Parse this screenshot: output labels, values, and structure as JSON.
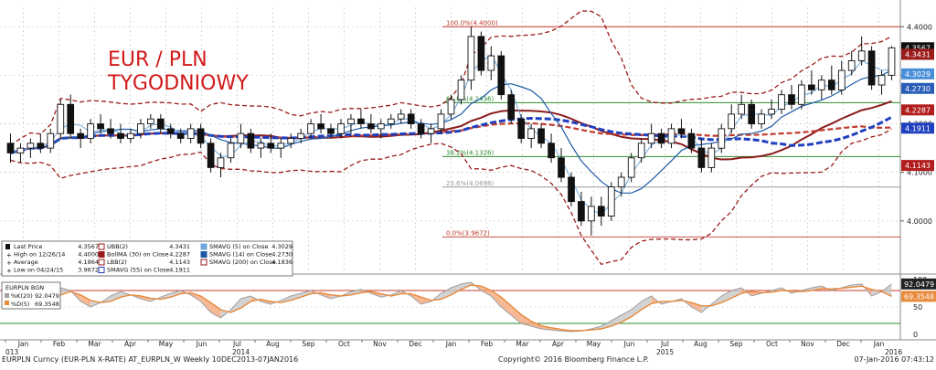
{
  "chart_data": {
    "type": "candlestick",
    "title": "EUR / PLN",
    "subtitle": "TYGODNIOWY",
    "y_range": [
      3.9,
      4.44
    ],
    "axis_ticks": [
      "4.4000",
      "4.3000",
      "4.2000",
      "4.1000",
      "4.0000"
    ],
    "axis_tick_values": [
      4.4,
      4.3,
      4.2,
      4.1,
      4.0
    ],
    "month_labels": [
      "Jan",
      "Feb",
      "Mar",
      "Apr",
      "May",
      "Jun",
      "Jul",
      "Aug",
      "Sep",
      "Oct",
      "Nov",
      "Dec",
      "Jan",
      "Feb",
      "Mar",
      "Apr",
      "May",
      "Jun",
      "Jul",
      "Aug",
      "Sep",
      "Oct",
      "Nov",
      "Dec",
      "Jan"
    ],
    "year_labels": [
      "013",
      "2014",
      "2015",
      "2016"
    ],
    "price_badges": [
      {
        "label": "4.3567",
        "value": 4.3567,
        "color": "#111111"
      },
      {
        "label": "4.3431",
        "value": 4.3431,
        "color": "#9b1b1b"
      },
      {
        "label": "4.3029",
        "value": 4.3029,
        "color": "#4a90d9"
      },
      {
        "label": "4.2730",
        "value": 4.273,
        "color": "#2a5db8"
      },
      {
        "label": "4.2287",
        "value": 4.2287,
        "color": "#b21d1d"
      },
      {
        "label": "4.1911",
        "value": 4.1911,
        "color": "#1f3fbf"
      },
      {
        "label": "4.1143",
        "value": 4.1143,
        "color": "#b21d1d"
      }
    ],
    "fib_levels": [
      {
        "label": "100.0%(4.4000)",
        "value": 4.4,
        "color": "#c0392b"
      },
      {
        "label": "61.8%(4.2436)",
        "value": 4.2436,
        "color": "#2e8b2e"
      },
      {
        "label": "38.2%(4.1326)",
        "value": 4.1326,
        "color": "#2e8b2e"
      },
      {
        "label": "23.6%(4.0698)",
        "value": 4.0698,
        "color": "#999999"
      },
      {
        "label": "0.0%(3.9672)",
        "value": 3.9672,
        "color": "#c0392b"
      }
    ],
    "candles": [
      [
        4.16,
        4.18,
        4.12,
        4.14
      ],
      [
        4.14,
        4.16,
        4.12,
        4.15
      ],
      [
        4.15,
        4.17,
        4.13,
        4.16
      ],
      [
        4.16,
        4.18,
        4.14,
        4.15
      ],
      [
        4.15,
        4.19,
        4.14,
        4.18
      ],
      [
        4.18,
        4.25,
        4.17,
        4.24
      ],
      [
        4.24,
        4.26,
        4.17,
        4.18
      ],
      [
        4.18,
        4.19,
        4.15,
        4.17
      ],
      [
        4.17,
        4.21,
        4.16,
        4.2
      ],
      [
        4.2,
        4.22,
        4.18,
        4.19
      ],
      [
        4.19,
        4.21,
        4.17,
        4.18
      ],
      [
        4.18,
        4.2,
        4.16,
        4.17
      ],
      [
        4.17,
        4.19,
        4.16,
        4.18
      ],
      [
        4.18,
        4.21,
        4.17,
        4.2
      ],
      [
        4.2,
        4.22,
        4.19,
        4.21
      ],
      [
        4.21,
        4.22,
        4.18,
        4.19
      ],
      [
        4.19,
        4.2,
        4.17,
        4.18
      ],
      [
        4.18,
        4.19,
        4.16,
        4.17
      ],
      [
        4.17,
        4.2,
        4.16,
        4.19
      ],
      [
        4.19,
        4.2,
        4.15,
        4.16
      ],
      [
        4.16,
        4.17,
        4.1,
        4.11
      ],
      [
        4.11,
        4.14,
        4.09,
        4.13
      ],
      [
        4.13,
        4.17,
        4.12,
        4.16
      ],
      [
        4.16,
        4.2,
        4.15,
        4.18
      ],
      [
        4.18,
        4.19,
        4.14,
        4.15
      ],
      [
        4.15,
        4.17,
        4.13,
        4.16
      ],
      [
        4.16,
        4.18,
        4.14,
        4.15
      ],
      [
        4.15,
        4.17,
        4.13,
        4.16
      ],
      [
        4.16,
        4.18,
        4.15,
        4.17
      ],
      [
        4.17,
        4.19,
        4.16,
        4.18
      ],
      [
        4.18,
        4.21,
        4.17,
        4.2
      ],
      [
        4.2,
        4.22,
        4.18,
        4.19
      ],
      [
        4.19,
        4.2,
        4.17,
        4.18
      ],
      [
        4.18,
        4.21,
        4.17,
        4.2
      ],
      [
        4.2,
        4.22,
        4.18,
        4.21
      ],
      [
        4.21,
        4.23,
        4.19,
        4.2
      ],
      [
        4.2,
        4.22,
        4.18,
        4.19
      ],
      [
        4.19,
        4.21,
        4.17,
        4.2
      ],
      [
        4.2,
        4.22,
        4.19,
        4.21
      ],
      [
        4.21,
        4.23,
        4.2,
        4.22
      ],
      [
        4.22,
        4.23,
        4.19,
        4.2
      ],
      [
        4.2,
        4.21,
        4.17,
        4.18
      ],
      [
        4.18,
        4.2,
        4.16,
        4.19
      ],
      [
        4.19,
        4.23,
        4.18,
        4.22
      ],
      [
        4.22,
        4.26,
        4.21,
        4.25
      ],
      [
        4.25,
        4.3,
        4.24,
        4.29
      ],
      [
        4.29,
        4.4,
        4.27,
        4.38
      ],
      [
        4.38,
        4.39,
        4.3,
        4.31
      ],
      [
        4.31,
        4.36,
        4.29,
        4.34
      ],
      [
        4.34,
        4.35,
        4.25,
        4.26
      ],
      [
        4.26,
        4.27,
        4.2,
        4.21
      ],
      [
        4.21,
        4.22,
        4.16,
        4.17
      ],
      [
        4.17,
        4.2,
        4.15,
        4.19
      ],
      [
        4.19,
        4.2,
        4.15,
        4.16
      ],
      [
        4.16,
        4.18,
        4.12,
        4.13
      ],
      [
        4.13,
        4.15,
        4.08,
        4.09
      ],
      [
        4.09,
        4.1,
        4.03,
        4.04
      ],
      [
        4.04,
        4.06,
        3.99,
        4.0
      ],
      [
        4.0,
        4.05,
        3.97,
        4.03
      ],
      [
        4.03,
        4.05,
        3.99,
        4.01
      ],
      [
        4.01,
        4.08,
        4.0,
        4.07
      ],
      [
        4.07,
        4.1,
        4.05,
        4.09
      ],
      [
        4.09,
        4.14,
        4.08,
        4.13
      ],
      [
        4.13,
        4.17,
        4.12,
        4.16
      ],
      [
        4.16,
        4.2,
        4.15,
        4.18
      ],
      [
        4.18,
        4.19,
        4.15,
        4.16
      ],
      [
        4.16,
        4.2,
        4.15,
        4.19
      ],
      [
        4.19,
        4.21,
        4.17,
        4.18
      ],
      [
        4.18,
        4.19,
        4.14,
        4.15
      ],
      [
        4.15,
        4.17,
        4.1,
        4.11
      ],
      [
        4.11,
        4.16,
        4.1,
        4.15
      ],
      [
        4.15,
        4.2,
        4.14,
        4.19
      ],
      [
        4.19,
        4.24,
        4.18,
        4.22
      ],
      [
        4.22,
        4.26,
        4.21,
        4.24
      ],
      [
        4.24,
        4.25,
        4.19,
        4.2
      ],
      [
        4.2,
        4.23,
        4.19,
        4.22
      ],
      [
        4.22,
        4.25,
        4.21,
        4.23
      ],
      [
        4.23,
        4.27,
        4.22,
        4.26
      ],
      [
        4.26,
        4.28,
        4.23,
        4.24
      ],
      [
        4.24,
        4.29,
        4.23,
        4.28
      ],
      [
        4.28,
        4.31,
        4.26,
        4.27
      ],
      [
        4.27,
        4.3,
        4.25,
        4.29
      ],
      [
        4.29,
        4.32,
        4.26,
        4.27
      ],
      [
        4.27,
        4.33,
        4.26,
        4.31
      ],
      [
        4.31,
        4.35,
        4.3,
        4.33
      ],
      [
        4.33,
        4.38,
        4.32,
        4.35
      ],
      [
        4.35,
        4.36,
        4.27,
        4.28
      ],
      [
        4.28,
        4.31,
        4.26,
        4.3
      ],
      [
        4.3,
        4.36,
        4.29,
        4.3567
      ]
    ],
    "legend": [
      {
        "label": "Last Price",
        "value": "4.3567",
        "mark": "candle"
      },
      {
        "label": "High on 12/26/14",
        "value": "4.4000",
        "mark": "plus"
      },
      {
        "label": "Average",
        "value": "4.1864",
        "mark": "plus"
      },
      {
        "label": "Low on 04/24/15",
        "value": "3.9672",
        "mark": "plus"
      },
      {
        "label": "UBB(2)",
        "value": "4.3431",
        "mark": "dash-red"
      },
      {
        "label": "BollMA (30) on Close",
        "value": "4.2287",
        "mark": "solid-red"
      },
      {
        "label": "LBB(2)",
        "value": "4.1143",
        "mark": "dash-red"
      },
      {
        "label": "SMAVG (55) on Close",
        "value": "4.1911",
        "mark": "dash-blue"
      },
      {
        "label": "SMAVG (5) on Close",
        "value": "4.3029",
        "mark": "solid-lightblue"
      },
      {
        "label": "SMAVG (14) on Close",
        "value": "4.2730",
        "mark": "solid-blue"
      },
      {
        "label": "SMAVG (200) on Close",
        "value": "4.1836",
        "mark": "dash-red"
      }
    ],
    "stochastic": {
      "header": "EURPLN BGN",
      "k_label": "%K(20)",
      "k_value": "92.0479",
      "d_label": "%D(5)",
      "d_value": "69.3548",
      "axis_ticks": [
        "100",
        "50",
        "0"
      ],
      "badges": [
        {
          "label": "92.0479",
          "color": "#222222"
        },
        {
          "label": "69.3548",
          "color": "#e88a3c"
        }
      ],
      "k_series": [
        70,
        65,
        55,
        60,
        72,
        85,
        80,
        60,
        50,
        58,
        70,
        78,
        72,
        65,
        60,
        68,
        75,
        80,
        72,
        60,
        40,
        30,
        45,
        65,
        70,
        60,
        55,
        62,
        70,
        75,
        80,
        72,
        65,
        70,
        78,
        82,
        75,
        68,
        72,
        80,
        70,
        55,
        60,
        75,
        85,
        92,
        95,
        80,
        70,
        50,
        35,
        20,
        15,
        10,
        8,
        6,
        5,
        6,
        10,
        15,
        25,
        35,
        45,
        60,
        70,
        55,
        60,
        65,
        50,
        40,
        55,
        70,
        80,
        85,
        70,
        75,
        80,
        85,
        75,
        80,
        85,
        88,
        80,
        85,
        90,
        92,
        70,
        78,
        92
      ],
      "d_series": [
        60,
        62,
        60,
        58,
        62,
        72,
        78,
        72,
        62,
        58,
        60,
        68,
        72,
        70,
        66,
        64,
        68,
        74,
        76,
        70,
        58,
        45,
        40,
        48,
        60,
        64,
        60,
        58,
        62,
        68,
        74,
        76,
        72,
        70,
        72,
        76,
        78,
        74,
        70,
        74,
        74,
        68,
        62,
        64,
        72,
        82,
        90,
        88,
        80,
        68,
        52,
        36,
        24,
        16,
        12,
        9,
        7,
        7,
        8,
        10,
        15,
        22,
        32,
        45,
        56,
        60,
        60,
        62,
        58,
        52,
        52,
        58,
        66,
        75,
        78,
        76,
        77,
        80,
        79,
        78,
        80,
        83,
        83,
        84,
        86,
        88,
        82,
        78,
        69.35
      ]
    },
    "footer": {
      "left": "EURPLN Curncy (EUR-PLN X-RATE) AT_EURPLN_W   Weekly 10DEC2013-07JAN2016",
      "center": "Copyright© 2016 Bloomberg Finance L.P.",
      "right": "07-Jan-2016 07:43:12"
    },
    "colors": {
      "bb": "#9b1b1b",
      "bollma": "#8b1c1c",
      "sma55": "#1f3fbf",
      "sma5": "#6fa8dc",
      "sma14": "#1c5aa6",
      "sma200": "#c0392b",
      "stoch_k": "#a0a0a0",
      "stoch_d": "#e88a3c"
    }
  }
}
